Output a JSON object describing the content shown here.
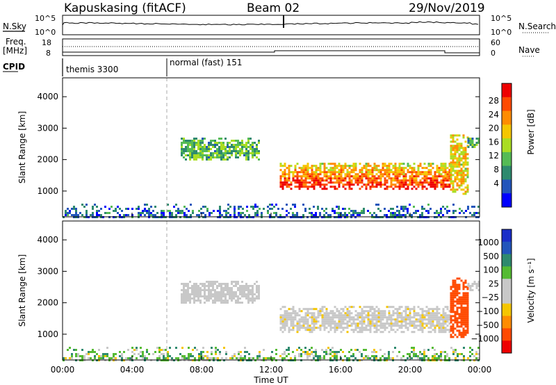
{
  "header": {
    "station": "Kapuskasing (fitACF)",
    "beam": "Beam 02",
    "date": "29/Nov/2019"
  },
  "strip_labels": {
    "nsky": "N.Sky",
    "freq_line1": "Freq.",
    "freq_line2": "[MHz]",
    "cpid": "CPID",
    "nsearch": "N.Search",
    "nave": "Nave"
  },
  "strip_ticks": {
    "nsky_top": "10^5",
    "nsky_bottom": "10^0",
    "nsearch_top": "10^5",
    "nsearch_bottom": "10^0",
    "freq_top": "18",
    "freq_bottom": "8",
    "nave_top": "60",
    "nave_bottom": "0"
  },
  "cpid_modes": [
    {
      "label": "themis 3300",
      "start_hour": 0
    },
    {
      "label": "normal (fast) 151",
      "start_hour": 6
    }
  ],
  "x_axis": {
    "label": "Time UT",
    "ticks": [
      "00:00",
      "04:00",
      "08:00",
      "12:00",
      "16:00",
      "20:00",
      "00:00"
    ]
  },
  "panels": [
    {
      "name": "power",
      "ylabel": "Slant Range [km]",
      "yticks": [
        "1000",
        "2000",
        "3000",
        "4000"
      ],
      "colorbar_label": "Power [dB]",
      "colorbar_ticks": [
        "4",
        "8",
        "12",
        "16",
        "20",
        "24",
        "28"
      ],
      "colors": [
        "#0000ff",
        "#2255bb",
        "#2e8a6e",
        "#55bb55",
        "#aadd22",
        "#f5c600",
        "#ff8c00",
        "#ff4a00",
        "#ee0000"
      ]
    },
    {
      "name": "velocity",
      "ylabel": "Slant Range [km]",
      "yticks": [
        "1000",
        "2000",
        "3000",
        "4000"
      ],
      "colorbar_label": "Velocity [m s⁻¹]",
      "colorbar_ticks": [
        "1000",
        "500",
        "100",
        "25",
        "−25",
        "−100",
        "−500",
        "−1000"
      ],
      "colors": [
        "#1a2ec8",
        "#2255bb",
        "#2e8a6e",
        "#55bb33",
        "#c8c8c8",
        "#c8c8c8",
        "#f5c600",
        "#ff8c00",
        "#ff4a00",
        "#ee0000"
      ]
    }
  ],
  "chart_data": {
    "type": "heatmap",
    "x_range_hours": [
      0,
      24
    ],
    "y_range_km": [
      180,
      4600
    ],
    "regions": [
      {
        "t_start": 0,
        "t_end": 24,
        "r_start": 180,
        "r_end": 600,
        "power_db": 6,
        "velocity": 50
      },
      {
        "t_start": 6.8,
        "t_end": 11.3,
        "r_start": 2000,
        "r_end": 2700,
        "power_db": 11,
        "velocity": 0
      },
      {
        "t_start": 12.5,
        "t_end": 22.3,
        "r_start": 1100,
        "r_end": 1900,
        "power_db": 20,
        "velocity": -10
      },
      {
        "t_start": 22.3,
        "t_end": 23.3,
        "r_start": 900,
        "r_end": 2800,
        "power_db": 18,
        "velocity": -600
      },
      {
        "t_start": 23.3,
        "t_end": 24,
        "r_start": 2400,
        "r_end": 2700,
        "power_db": 10,
        "velocity": 0
      }
    ]
  }
}
